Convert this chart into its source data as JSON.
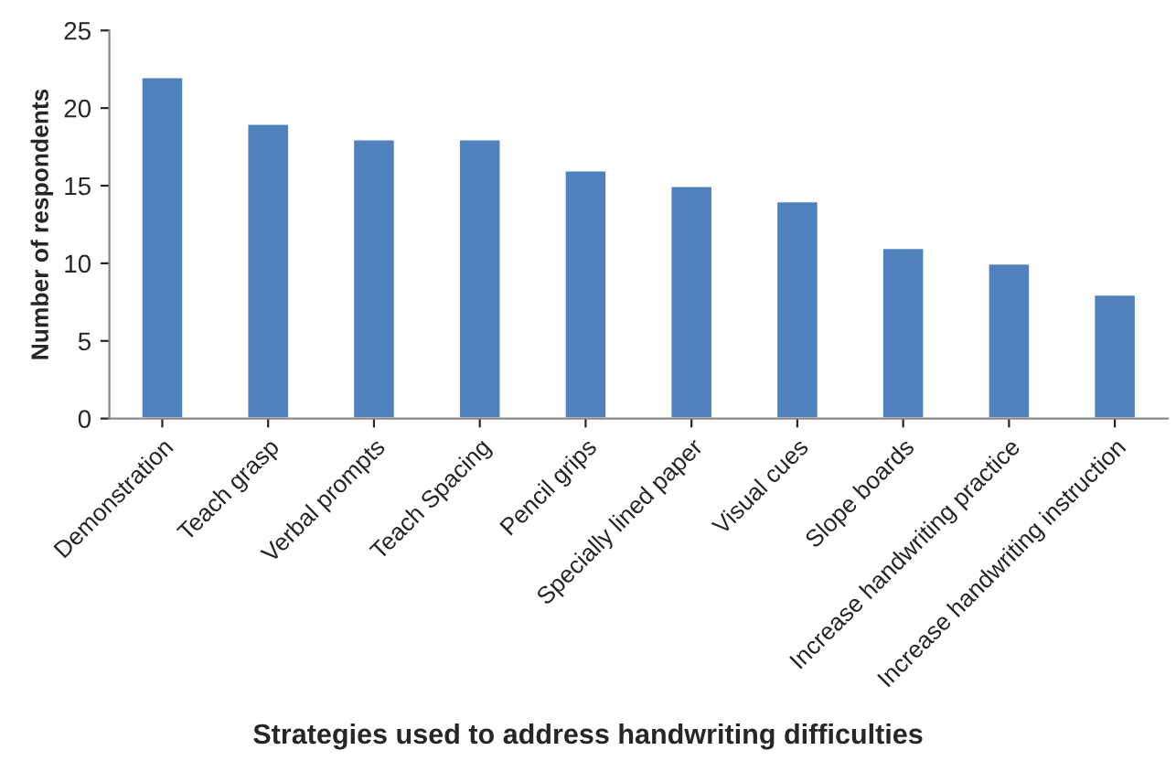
{
  "chart_data": {
    "type": "bar",
    "xlabel": "Strategies used to address handwriting difficulties",
    "ylabel": "Number of respondents",
    "categories": [
      "Demonstration",
      "Teach grasp",
      "Verbal prompts",
      "Teach Spacing",
      "Pencil grips",
      "Specially lined paper",
      "Visual cues",
      "Slope boards",
      "Increase handwriting practice",
      "Increase handwriting instruction"
    ],
    "values": [
      22,
      19,
      18,
      18,
      16,
      15,
      14,
      11,
      10,
      8
    ],
    "color": "#4f81bd",
    "ylim": [
      0,
      25
    ],
    "yticks": [
      0,
      5,
      10,
      15,
      20,
      25
    ],
    "grid": false,
    "legend": false
  }
}
